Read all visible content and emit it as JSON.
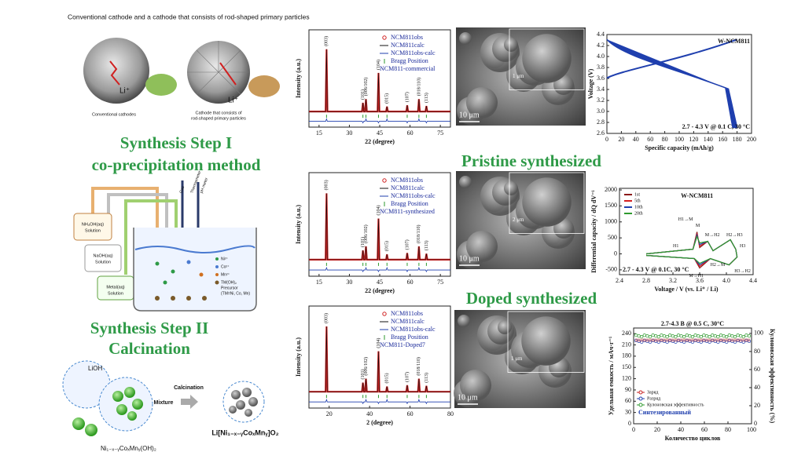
{
  "header": {
    "title": "Conventional cathode and a cathode that consists of rod-shaped primary particles",
    "li_left": "Li⁺",
    "li_right": "Li⁺",
    "caption_left": "Conventional cathodes",
    "caption_right_1": "Cathode that consists of",
    "caption_right_2": "rod-shaped primary particles"
  },
  "steps": {
    "step1": "Synthesis Step I",
    "step1_method": "co-precipitation method",
    "step2": "Synthesis Step II",
    "step2_method": "Calcination"
  },
  "reactor": {
    "nh4oh": "NH₄OH(aq)",
    "nh4oh_sol": "Solution",
    "naoh": "NaOH(aq)",
    "naoh_sol": "Solution",
    "metal": "Metal(aq)",
    "metal_sol": "Solution",
    "gas": "Gas",
    "thermometer": "Thermometer",
    "ph": "pH meter",
    "ni": "Ni²⁺",
    "co": "Co²⁺",
    "mn": "Mn²⁺",
    "precursor_1": "TM(OH)₂",
    "precursor_2": "Precursor",
    "precursor_3": "(TM=Ni, Co, Mn)"
  },
  "calcination": {
    "lioh": "LiOH",
    "process": "Calcination",
    "mixture": "Mixture",
    "product": "Li[Ni₁₋ₓ₋ᵧCoₓMnᵧ]O₂",
    "precursor": "Ni₁₋ₓ₋ᵧCoₓMnᵧ(OH)₂"
  },
  "xrd": [
    {
      "sample": "NCM811-commercial",
      "obs": "NCM811obs",
      "calc": "NCM811calc",
      "diff": "NCM811obs-calc",
      "bragg": "Bragg Position",
      "xlabel": "22 (degree)",
      "ylabel": "Intensity (a.u.)",
      "xlim": [
        10,
        80
      ],
      "xticks": [
        15,
        30,
        45,
        60,
        75
      ],
      "peaks": [
        "(003)",
        "(101)",
        "(006/102)",
        "(104)",
        "(015)",
        "(107)",
        "(018/110)",
        "(113)"
      ]
    },
    {
      "sample": "NCM811-synthesized",
      "obs": "NCM811obs",
      "calc": "NCM811calc",
      "diff": "NCM811obs-calc",
      "bragg": "Bragg Position",
      "xlabel": "22 (degree)",
      "ylabel": "Intensity (a.u.)",
      "xlim": [
        10,
        80
      ],
      "xticks": [
        15,
        30,
        45,
        60,
        75
      ],
      "peaks": [
        "(003)",
        "(101)",
        "(006/102)",
        "(104)",
        "(015)",
        "(107)",
        "(018/110)",
        "(113)"
      ]
    },
    {
      "sample": "NCM811-Doped7",
      "obs": "NCM811obs",
      "calc": "NCM811calc",
      "diff": "NCM811obs-calc",
      "bragg": "Bragg Position",
      "xlabel": "2 (degree)",
      "ylabel": "Intensity (a.u.)",
      "xlim": [
        10,
        80
      ],
      "xticks": [
        20,
        40,
        60,
        80
      ],
      "peaks": [
        "(003)",
        "(101)",
        "(006/102)",
        "(104)",
        "(015)",
        "(107)",
        "(018/110)",
        "(113)"
      ]
    }
  ],
  "sections": {
    "pristine": "Pristine synthesized",
    "doped": "Doped synthesized"
  },
  "sem": [
    {
      "scale_main": "10 μm",
      "scale_inset": "1 μm"
    },
    {
      "scale_main": "10 μm",
      "scale_inset": "2 μm"
    },
    {
      "scale_main": "10 μm",
      "scale_inset": "1 μm"
    }
  ],
  "voltage_chart": {
    "title": "W-NCM811",
    "xlabel": "Specific capacity (mAh/g)",
    "ylabel": "Voltage (V)",
    "note": "2.7 - 4.3 V @ 0.1 C, 30 °C",
    "xlim": [
      0,
      200
    ],
    "ylim": [
      2.6,
      4.4
    ],
    "xticks": [
      0,
      20,
      40,
      60,
      80,
      100,
      120,
      140,
      160,
      180,
      200
    ],
    "yticks": [
      2.6,
      2.8,
      {
        "value": 3,
        "label": "3.0"
      },
      3.2,
      3.4,
      3.6,
      3.8,
      {
        "value": 4,
        "label": "4.0"
      },
      4.2,
      4.4
    ]
  },
  "dqdv_chart": {
    "title": "W-NCM811",
    "xlabel": "Voltage / V (vs. Li⁺ / Li)",
    "ylabel": "Differential capacity / dQ dV⁻¹",
    "note": "2.7 - 4.3 V @ 0.1C, 30 °C",
    "xlim": [
      2.4,
      4.4
    ],
    "ylim": [
      -650,
      2050
    ],
    "xticks": [
      2.4,
      2.8,
      3.2,
      3.6,
      {
        "value": 4,
        "label": "4.0"
      },
      4.4
    ],
    "yticks": [
      -500,
      0,
      500,
      1000,
      1500,
      2000
    ],
    "series": [
      {
        "name": "1st",
        "color": "#8b1a1a"
      },
      {
        "name": "5th",
        "color": "#d62020"
      },
      {
        "name": "10th",
        "color": "#1f3fae"
      },
      {
        "name": "20th",
        "color": "#2e9a2e"
      }
    ],
    "phases": [
      "H1→M",
      "M",
      "M→H2",
      "H2→H3",
      "H3",
      "H3→H2",
      "H2→M",
      "M→H1",
      "H1"
    ]
  },
  "cycling_chart": {
    "note": "2.7-4.3 B @ 0.5 C, 30°C",
    "xlabel": "Количество циклов",
    "ylabel": "Удельная емкость / мАч·г⁻¹",
    "y2label": "Кулоновская эффективность (%)",
    "xlim": [
      0,
      100
    ],
    "ylim": [
      0,
      255
    ],
    "y2lim": [
      0,
      106
    ],
    "xticks": [
      0,
      20,
      40,
      60,
      80,
      100
    ],
    "yticks": [
      0,
      30,
      60,
      90,
      120,
      150,
      180,
      210,
      240
    ],
    "y2ticks": [
      0,
      20,
      40,
      60,
      80,
      100
    ],
    "series": [
      {
        "name": "Заряд",
        "color": "#c62020"
      },
      {
        "name": "Разряд",
        "color": "#1f3fae"
      },
      {
        "name": "Кулоновская эффективность",
        "color": "#2e9a2e"
      }
    ],
    "tag": "Синтезированный"
  }
}
